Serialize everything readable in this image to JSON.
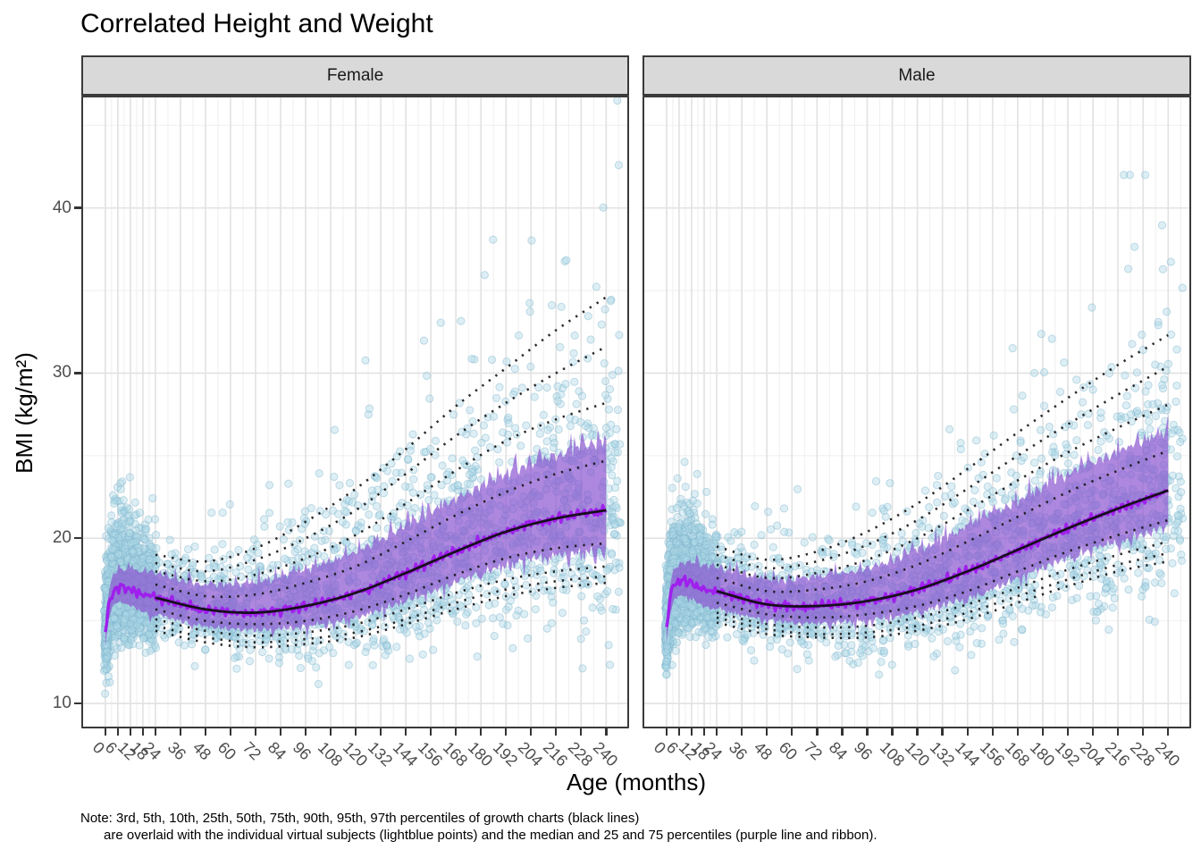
{
  "chart_data": {
    "type": "scatter",
    "title": "Correlated Height and Weight",
    "xlabel": "Age (months)",
    "ylabel": "BMI (kg/m²)",
    "xlim": [
      -11.5,
      251
    ],
    "ylim": [
      8.49,
      46.8
    ],
    "x_ticks": [
      0,
      6,
      12,
      18,
      24,
      36,
      48,
      60,
      72,
      84,
      96,
      108,
      120,
      132,
      144,
      156,
      168,
      180,
      192,
      204,
      216,
      228,
      240
    ],
    "x_minor_gridlines": [
      3,
      9,
      15,
      21,
      30,
      42,
      54,
      66,
      78,
      90,
      102,
      114,
      126,
      138,
      150,
      162,
      174,
      186,
      198,
      210,
      222,
      234,
      246
    ],
    "y_ticks": [
      10,
      20,
      30,
      40
    ],
    "y_minor_gridlines": [
      15,
      25,
      35,
      45
    ],
    "grid": true,
    "legend": "none",
    "facets": [
      {
        "label": "Female",
        "percentile_ages_months": [
          24,
          48,
          72,
          96,
          120,
          144,
          168,
          192,
          216,
          240
        ],
        "growth_chart_percentiles": {
          "p3": [
            14.4,
            13.7,
            13.4,
            13.6,
            14.0,
            14.8,
            15.7,
            16.5,
            17.0,
            17.3
          ],
          "p5": [
            14.7,
            14.0,
            13.7,
            13.9,
            14.3,
            15.1,
            16.1,
            16.9,
            17.4,
            17.7
          ],
          "p10": [
            15.1,
            14.4,
            14.1,
            14.3,
            14.8,
            15.7,
            16.7,
            17.5,
            18.0,
            18.3
          ],
          "p25": [
            15.7,
            15.0,
            14.8,
            15.0,
            15.6,
            16.6,
            17.8,
            18.8,
            19.4,
            19.7
          ],
          "p50": [
            16.4,
            15.7,
            15.5,
            15.9,
            16.7,
            17.9,
            19.2,
            20.4,
            21.2,
            21.7
          ],
          "p75": [
            17.2,
            16.5,
            16.6,
            17.3,
            18.3,
            19.8,
            21.4,
            22.8,
            23.9,
            24.7
          ],
          "p90": [
            18.0,
            17.4,
            17.8,
            18.8,
            20.2,
            22.1,
            24.1,
            25.9,
            27.2,
            28.2
          ],
          "p95": [
            18.5,
            18.0,
            18.7,
            20.0,
            21.7,
            23.9,
            26.2,
            28.2,
            30.0,
            31.6
          ],
          "p97": [
            19.0,
            18.6,
            19.4,
            21.0,
            23.0,
            25.4,
            28.0,
            30.3,
            32.6,
            34.6
          ]
        },
        "virtual_median": {
          "ages_months": [
            0,
            1,
            2,
            4,
            6,
            9,
            12,
            18,
            24
          ],
          "bmi": [
            14.2,
            15.3,
            16.1,
            16.8,
            17.0,
            17.0,
            16.9,
            16.6,
            16.4
          ]
        },
        "scatter_sim": {
          "seed": 42,
          "n_points": 3600,
          "infant_fraction": 0.52,
          "sigma_by_age": [
            [
              0,
              0.088
            ],
            [
              24,
              0.075
            ],
            [
              60,
              0.088
            ],
            [
              120,
              0.13
            ],
            [
              180,
              0.16
            ],
            [
              240,
              0.185
            ]
          ],
          "skew": 1.28,
          "outlier_prob": 0.02,
          "bmi_max": 46.5
        }
      },
      {
        "label": "Male",
        "percentile_ages_months": [
          24,
          48,
          72,
          96,
          120,
          144,
          168,
          192,
          216,
          240
        ],
        "growth_chart_percentiles": {
          "p3": [
            14.9,
            14.2,
            14.0,
            14.0,
            14.4,
            15.1,
            16.1,
            17.1,
            18.0,
            18.6
          ],
          "p5": [
            15.2,
            14.5,
            14.2,
            14.3,
            14.7,
            15.5,
            16.5,
            17.5,
            18.4,
            19.1
          ],
          "p10": [
            15.5,
            14.8,
            14.6,
            14.7,
            15.2,
            16.0,
            17.0,
            18.1,
            19.0,
            19.8
          ],
          "p25": [
            16.1,
            15.4,
            15.2,
            15.4,
            15.9,
            16.8,
            18.0,
            19.2,
            20.2,
            21.1
          ],
          "p50": [
            16.8,
            16.0,
            15.9,
            16.2,
            16.9,
            18.0,
            19.3,
            20.6,
            21.8,
            22.9
          ],
          "p75": [
            17.6,
            16.8,
            16.9,
            17.4,
            18.4,
            19.8,
            21.3,
            22.8,
            24.1,
            25.3
          ],
          "p90": [
            18.4,
            17.6,
            17.9,
            18.7,
            20.0,
            21.7,
            23.5,
            25.2,
            26.7,
            28.1
          ],
          "p95": [
            19.0,
            18.2,
            18.6,
            19.6,
            21.1,
            23.0,
            25.0,
            26.9,
            28.7,
            30.4
          ],
          "p97": [
            19.5,
            18.7,
            19.2,
            20.4,
            22.1,
            24.2,
            26.4,
            28.5,
            30.5,
            32.3
          ]
        },
        "virtual_median": {
          "ages_months": [
            0,
            1,
            2,
            4,
            6,
            9,
            12,
            18,
            24
          ],
          "bmi": [
            14.4,
            15.6,
            16.5,
            17.2,
            17.4,
            17.4,
            17.3,
            16.9,
            16.8
          ]
        },
        "scatter_sim": {
          "seed": 1337,
          "n_points": 3600,
          "infant_fraction": 0.52,
          "sigma_by_age": [
            [
              0,
              0.085
            ],
            [
              24,
              0.072
            ],
            [
              60,
              0.085
            ],
            [
              120,
              0.12
            ],
            [
              180,
              0.15
            ],
            [
              240,
              0.168
            ]
          ],
          "skew": 1.22,
          "outlier_prob": 0.016,
          "bmi_max": 42.0
        }
      }
    ],
    "style": {
      "figure_bg": "#FFFFFF",
      "point_fill": "#ADD8E6",
      "point_stroke": "#7FB3CB",
      "point_opacity": 0.42,
      "point_radius": 4.1,
      "ribbon_fill": "#8A56D0",
      "ribbon_opacity": 0.7,
      "median_line": "#A01AEE",
      "growth_line": "#141414",
      "grid_major": "#E3E3E3",
      "grid_minor": "#EFEFEF",
      "panel_border": "#3A3A3A",
      "strip_bg": "#D9D9D9",
      "axis_text": "#4D4D4D",
      "tick_mark": "#333333",
      "title_color": "#000000"
    }
  },
  "note": {
    "line1": "Note: 3rd, 5th, 10th, 25th, 50th, 75th, 90th, 95th, 97th percentiles of growth charts (black lines)",
    "line2": "are overlaid with the individual virtual subjects (lightblue points) and the median and 25 and 75 percentiles (purple line and ribbon)."
  }
}
